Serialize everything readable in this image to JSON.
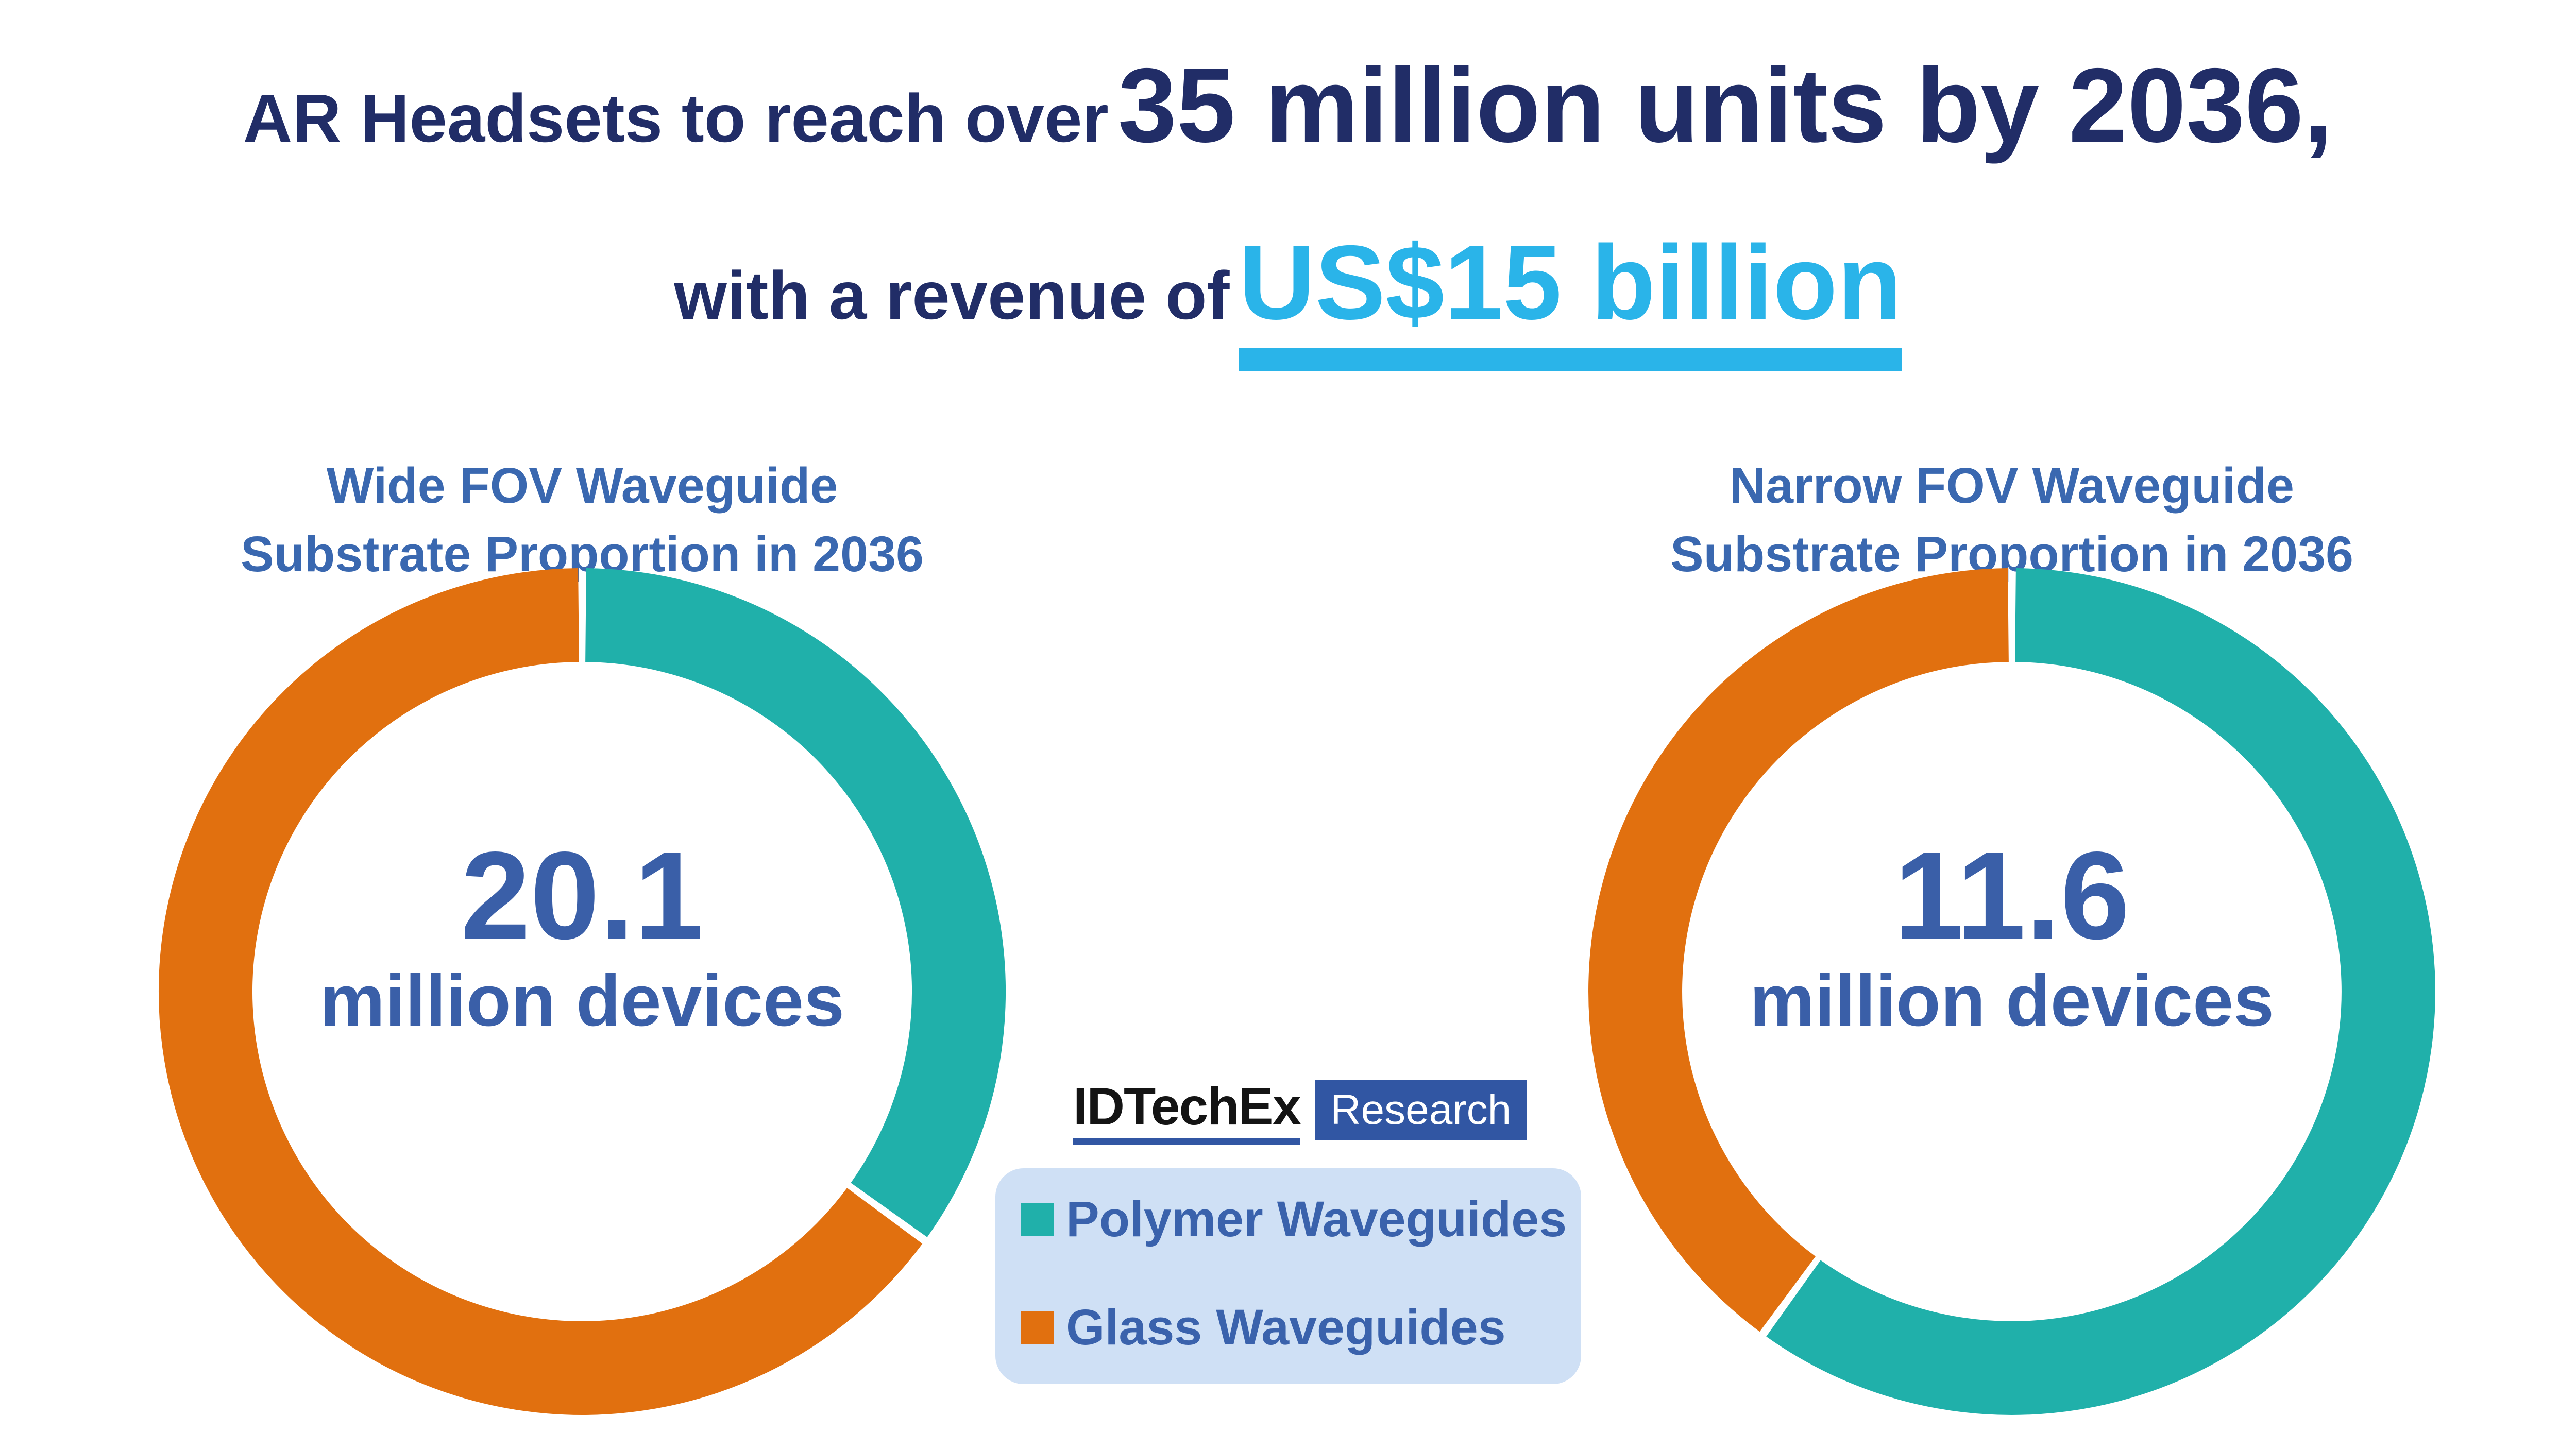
{
  "title": {
    "line1_small": "AR Headsets to reach over",
    "line1_large": "35 million units by 2036,",
    "line2_small": "with a revenue of",
    "line2_large": "US$15 billion"
  },
  "colors": {
    "headline_navy": "#212d67",
    "accent_cyan": "#2ab4e9",
    "chart_title_blue": "#3a68b0",
    "center_text_blue": "#3a5fa8",
    "legend_text_blue": "#3a62ac",
    "legend_background": "#cfe0f5",
    "logo_black": "#141414",
    "research_box_blue": "#3156a3",
    "polymer_teal": "#20b0aa",
    "glass_orange": "#e1700f"
  },
  "chart_data": [
    {
      "type": "donut",
      "title": "Wide FOV Waveguide Substrate Proportion in 2036",
      "title_line1": "Wide FOV Waveguide",
      "title_line2": "Substrate Proportion in 2036",
      "center_value": "20.1",
      "center_label": "million devices",
      "categories": [
        "Polymer Waveguides",
        "Glass Waveguides"
      ],
      "values_pct": [
        35,
        65
      ],
      "colors": [
        "#20b0aa",
        "#e1700f"
      ],
      "start_angle_deg": 0,
      "direction": "clockwise",
      "legend_position": "center-between-charts",
      "grid": false
    },
    {
      "type": "donut",
      "title": "Narrow FOV Waveguide Substrate Proportion in 2036",
      "title_line1": "Narrow FOV Waveguide",
      "title_line2": "Substrate Proportion in 2036",
      "center_value": "11.6",
      "center_label": "million devices",
      "categories": [
        "Polymer Waveguides",
        "Glass Waveguides"
      ],
      "values_pct": [
        60,
        40
      ],
      "colors": [
        "#20b0aa",
        "#e1700f"
      ],
      "start_angle_deg": 0,
      "direction": "clockwise",
      "legend_position": "center-between-charts",
      "grid": false
    }
  ],
  "legend": {
    "items": [
      {
        "label": "Polymer Waveguides"
      },
      {
        "label": "Glass Waveguides"
      }
    ]
  },
  "logo": {
    "brand": "IDTechEx",
    "product": "Research"
  }
}
